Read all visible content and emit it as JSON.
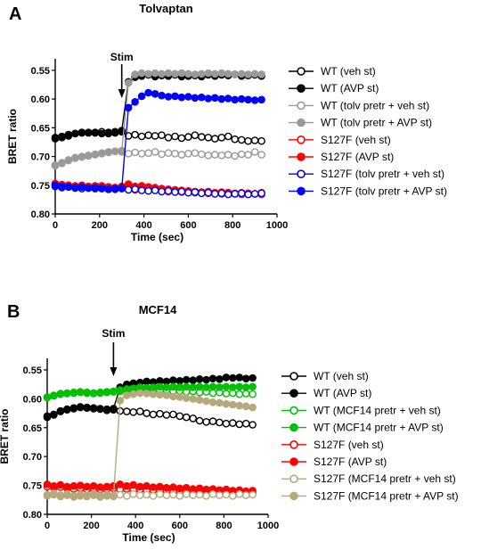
{
  "chart_data": [
    {
      "type": "line",
      "panel": "A",
      "title": "Tolvaptan",
      "xlabel": "Time (sec)",
      "ylabel": "BRET ratio",
      "xlim": [
        0,
        1000
      ],
      "ylim": [
        0.8,
        0.53
      ],
      "y_inverted": true,
      "xticks": [
        0,
        200,
        400,
        600,
        800,
        1000
      ],
      "yticks": [
        0.55,
        0.6,
        0.65,
        0.7,
        0.75,
        0.8
      ],
      "xtick_labels": [
        "0",
        "200",
        "400",
        "600",
        "800",
        "1000"
      ],
      "ytick_labels": [
        "0.55",
        "0.60",
        "0.65",
        "0.70",
        "0.75",
        "0.80"
      ],
      "annotation": {
        "text": "Stim",
        "x": 300
      },
      "grid": false,
      "legend_position": "right",
      "x": [
        0,
        30,
        60,
        90,
        120,
        150,
        180,
        210,
        240,
        270,
        300,
        330,
        360,
        390,
        420,
        450,
        480,
        510,
        540,
        570,
        600,
        630,
        660,
        690,
        720,
        750,
        780,
        810,
        840,
        870,
        900,
        930
      ],
      "series": [
        {
          "name": "WT (veh st)",
          "color": "#000000",
          "filled": false,
          "values": [
            0.669,
            0.667,
            0.664,
            0.66,
            0.659,
            0.658,
            0.659,
            0.657,
            0.66,
            0.659,
            0.657,
            0.664,
            0.662,
            0.665,
            0.663,
            0.664,
            0.663,
            0.667,
            0.665,
            0.668,
            0.666,
            0.663,
            0.666,
            0.667,
            0.669,
            0.667,
            0.665,
            0.67,
            0.671,
            0.673,
            0.672,
            0.673
          ]
        },
        {
          "name": "WT (AVP st)",
          "color": "#000000",
          "filled": true,
          "values": [
            0.667,
            0.665,
            0.662,
            0.66,
            0.658,
            0.659,
            0.658,
            0.66,
            0.658,
            0.657,
            0.655,
            0.57,
            0.562,
            0.56,
            0.558,
            0.561,
            0.559,
            0.56,
            0.558,
            0.561,
            0.56,
            0.559,
            0.561,
            0.558,
            0.56,
            0.558,
            0.559,
            0.557,
            0.56,
            0.559,
            0.558,
            0.56
          ]
        },
        {
          "name": "WT (tolv pretr + veh st)",
          "color": "#9a9a9a",
          "filled": false,
          "values": [
            0.716,
            0.712,
            0.707,
            0.703,
            0.701,
            0.699,
            0.697,
            0.695,
            0.693,
            0.691,
            0.692,
            0.695,
            0.693,
            0.695,
            0.694,
            0.692,
            0.696,
            0.694,
            0.695,
            0.697,
            0.695,
            0.694,
            0.696,
            0.698,
            0.697,
            0.698,
            0.697,
            0.699,
            0.696,
            0.697,
            0.692,
            0.697
          ]
        },
        {
          "name": "WT (tolv pretr + AVP st)",
          "color": "#9a9a9a",
          "filled": true,
          "values": [
            0.715,
            0.711,
            0.706,
            0.702,
            0.7,
            0.698,
            0.696,
            0.694,
            0.692,
            0.691,
            0.69,
            0.572,
            0.557,
            0.555,
            0.556,
            0.555,
            0.556,
            0.555,
            0.556,
            0.555,
            0.556,
            0.557,
            0.556,
            0.555,
            0.556,
            0.555,
            0.556,
            0.557,
            0.556,
            0.557,
            0.556,
            0.557
          ]
        },
        {
          "name": "S127F (veh st)",
          "color": "#ff0000",
          "filled": false,
          "values": [
            0.748,
            0.751,
            0.75,
            0.752,
            0.751,
            0.753,
            0.752,
            0.751,
            0.753,
            0.754,
            0.752,
            0.756,
            0.758,
            0.757,
            0.759,
            0.758,
            0.76,
            0.761,
            0.76,
            0.762,
            0.761,
            0.763,
            0.762,
            0.764,
            0.763,
            0.765,
            0.763,
            0.765,
            0.766,
            0.764,
            0.765,
            0.766
          ]
        },
        {
          "name": "S127F (AVP st)",
          "color": "#ff0000",
          "filled": true,
          "values": [
            0.747,
            0.749,
            0.75,
            0.751,
            0.75,
            0.752,
            0.751,
            0.752,
            0.753,
            0.754,
            0.753,
            0.748,
            0.752,
            0.751,
            0.753,
            0.754,
            0.756,
            0.757,
            0.758,
            0.759,
            0.76,
            0.761,
            0.762,
            0.761,
            0.763,
            0.762,
            0.763,
            0.764,
            0.763,
            0.764,
            0.765,
            0.763
          ]
        },
        {
          "name": "S127F (tolv pretr + veh st)",
          "color": "#0000ff",
          "filled": false,
          "values": [
            0.752,
            0.754,
            0.753,
            0.755,
            0.756,
            0.755,
            0.756,
            0.755,
            0.757,
            0.756,
            0.755,
            0.758,
            0.757,
            0.759,
            0.76,
            0.759,
            0.761,
            0.76,
            0.762,
            0.761,
            0.763,
            0.762,
            0.764,
            0.763,
            0.765,
            0.764,
            0.766,
            0.765,
            0.764,
            0.766,
            0.765,
            0.764
          ]
        },
        {
          "name": "S127F (tolv pretr + AVP st)",
          "color": "#0000ff",
          "filled": true,
          "values": [
            0.75,
            0.752,
            0.753,
            0.754,
            0.753,
            0.755,
            0.754,
            0.756,
            0.757,
            0.757,
            0.756,
            0.615,
            0.605,
            0.595,
            0.589,
            0.591,
            0.594,
            0.596,
            0.595,
            0.597,
            0.596,
            0.598,
            0.597,
            0.599,
            0.598,
            0.6,
            0.599,
            0.601,
            0.6,
            0.601,
            0.602,
            0.601
          ]
        }
      ]
    },
    {
      "type": "line",
      "panel": "B",
      "title": "MCF14",
      "xlabel": "Time (sec)",
      "ylabel": "BRET ratio",
      "xlim": [
        0,
        1000
      ],
      "ylim": [
        0.8,
        0.53
      ],
      "y_inverted": true,
      "xticks": [
        0,
        200,
        400,
        600,
        800,
        1000
      ],
      "yticks": [
        0.55,
        0.6,
        0.65,
        0.7,
        0.75,
        0.8
      ],
      "xtick_labels": [
        "0",
        "200",
        "400",
        "600",
        "800",
        "1000"
      ],
      "ytick_labels": [
        "0.55",
        "0.60",
        "0.65",
        "0.70",
        "0.75",
        "0.80"
      ],
      "annotation": {
        "text": "Stim",
        "x": 300
      },
      "grid": false,
      "legend_position": "right",
      "x": [
        0,
        30,
        60,
        90,
        120,
        150,
        180,
        210,
        240,
        270,
        300,
        330,
        360,
        390,
        420,
        450,
        480,
        510,
        540,
        570,
        600,
        630,
        660,
        690,
        720,
        750,
        780,
        810,
        840,
        870,
        900,
        930
      ],
      "series": [
        {
          "name": "WT (veh st)",
          "color": "#000000",
          "filled": false,
          "values": [
            0.632,
            0.628,
            0.622,
            0.619,
            0.617,
            0.615,
            0.616,
            0.617,
            0.618,
            0.62,
            0.619,
            0.621,
            0.622,
            0.623,
            0.622,
            0.625,
            0.627,
            0.626,
            0.628,
            0.627,
            0.63,
            0.632,
            0.634,
            0.638,
            0.64,
            0.639,
            0.641,
            0.643,
            0.642,
            0.644,
            0.643,
            0.645
          ]
        },
        {
          "name": "WT (AVP st)",
          "color": "#000000",
          "filled": true,
          "values": [
            0.63,
            0.627,
            0.621,
            0.618,
            0.616,
            0.614,
            0.615,
            0.616,
            0.617,
            0.618,
            0.617,
            0.58,
            0.575,
            0.573,
            0.572,
            0.57,
            0.571,
            0.569,
            0.57,
            0.568,
            0.569,
            0.567,
            0.568,
            0.566,
            0.567,
            0.565,
            0.566,
            0.563,
            0.564,
            0.563,
            0.565,
            0.564
          ]
        },
        {
          "name": "WT (MCF14 pretr + veh st)",
          "color": "#00c000",
          "filled": false,
          "values": [
            0.598,
            0.595,
            0.592,
            0.591,
            0.59,
            0.589,
            0.59,
            0.591,
            0.59,
            0.589,
            0.588,
            0.587,
            0.586,
            0.585,
            0.584,
            0.585,
            0.584,
            0.586,
            0.585,
            0.587,
            0.586,
            0.588,
            0.587,
            0.589,
            0.588,
            0.59,
            0.589,
            0.591,
            0.59,
            0.592,
            0.591,
            0.592
          ]
        },
        {
          "name": "WT (MCF14 pretr + AVP st)",
          "color": "#00c000",
          "filled": true,
          "values": [
            0.597,
            0.594,
            0.591,
            0.59,
            0.589,
            0.588,
            0.589,
            0.59,
            0.589,
            0.588,
            0.587,
            0.585,
            0.583,
            0.582,
            0.58,
            0.581,
            0.58,
            0.579,
            0.58,
            0.579,
            0.58,
            0.579,
            0.58,
            0.579,
            0.58,
            0.579,
            0.58,
            0.579,
            0.58,
            0.579,
            0.58,
            0.579
          ]
        },
        {
          "name": "S127F (veh st)",
          "color": "#ff0000",
          "filled": false,
          "values": [
            0.752,
            0.754,
            0.753,
            0.755,
            0.756,
            0.755,
            0.757,
            0.756,
            0.757,
            0.756,
            0.755,
            0.757,
            0.756,
            0.758,
            0.757,
            0.759,
            0.758,
            0.76,
            0.759,
            0.761,
            0.76,
            0.762,
            0.761,
            0.763,
            0.762,
            0.761,
            0.763,
            0.762,
            0.763,
            0.762,
            0.764,
            0.763
          ]
        },
        {
          "name": "S127F (AVP st)",
          "color": "#ff0000",
          "filled": true,
          "values": [
            0.748,
            0.751,
            0.749,
            0.752,
            0.751,
            0.75,
            0.752,
            0.751,
            0.753,
            0.752,
            0.751,
            0.748,
            0.751,
            0.749,
            0.752,
            0.751,
            0.753,
            0.752,
            0.754,
            0.753,
            0.755,
            0.754,
            0.756,
            0.755,
            0.757,
            0.756,
            0.758,
            0.757,
            0.759,
            0.758,
            0.76,
            0.759
          ]
        },
        {
          "name": "S127F (MCF14 pretr + veh st)",
          "color": "#b5a97d",
          "filled": false,
          "values": [
            0.766,
            0.764,
            0.767,
            0.765,
            0.768,
            0.766,
            0.767,
            0.765,
            0.768,
            0.766,
            0.767,
            0.766,
            0.768,
            0.765,
            0.767,
            0.766,
            0.768,
            0.765,
            0.767,
            0.766,
            0.768,
            0.765,
            0.767,
            0.766,
            0.768,
            0.765,
            0.767,
            0.766,
            0.768,
            0.765,
            0.767,
            0.766
          ]
        },
        {
          "name": "S127F (MCF14 pretr + AVP st)",
          "color": "#b5a97d",
          "filled": true,
          "values": [
            0.768,
            0.766,
            0.769,
            0.767,
            0.77,
            0.768,
            0.769,
            0.767,
            0.77,
            0.768,
            0.769,
            0.603,
            0.594,
            0.592,
            0.59,
            0.591,
            0.592,
            0.593,
            0.594,
            0.596,
            0.597,
            0.599,
            0.6,
            0.602,
            0.604,
            0.606,
            0.607,
            0.609,
            0.61,
            0.612,
            0.613,
            0.615
          ]
        }
      ]
    }
  ]
}
